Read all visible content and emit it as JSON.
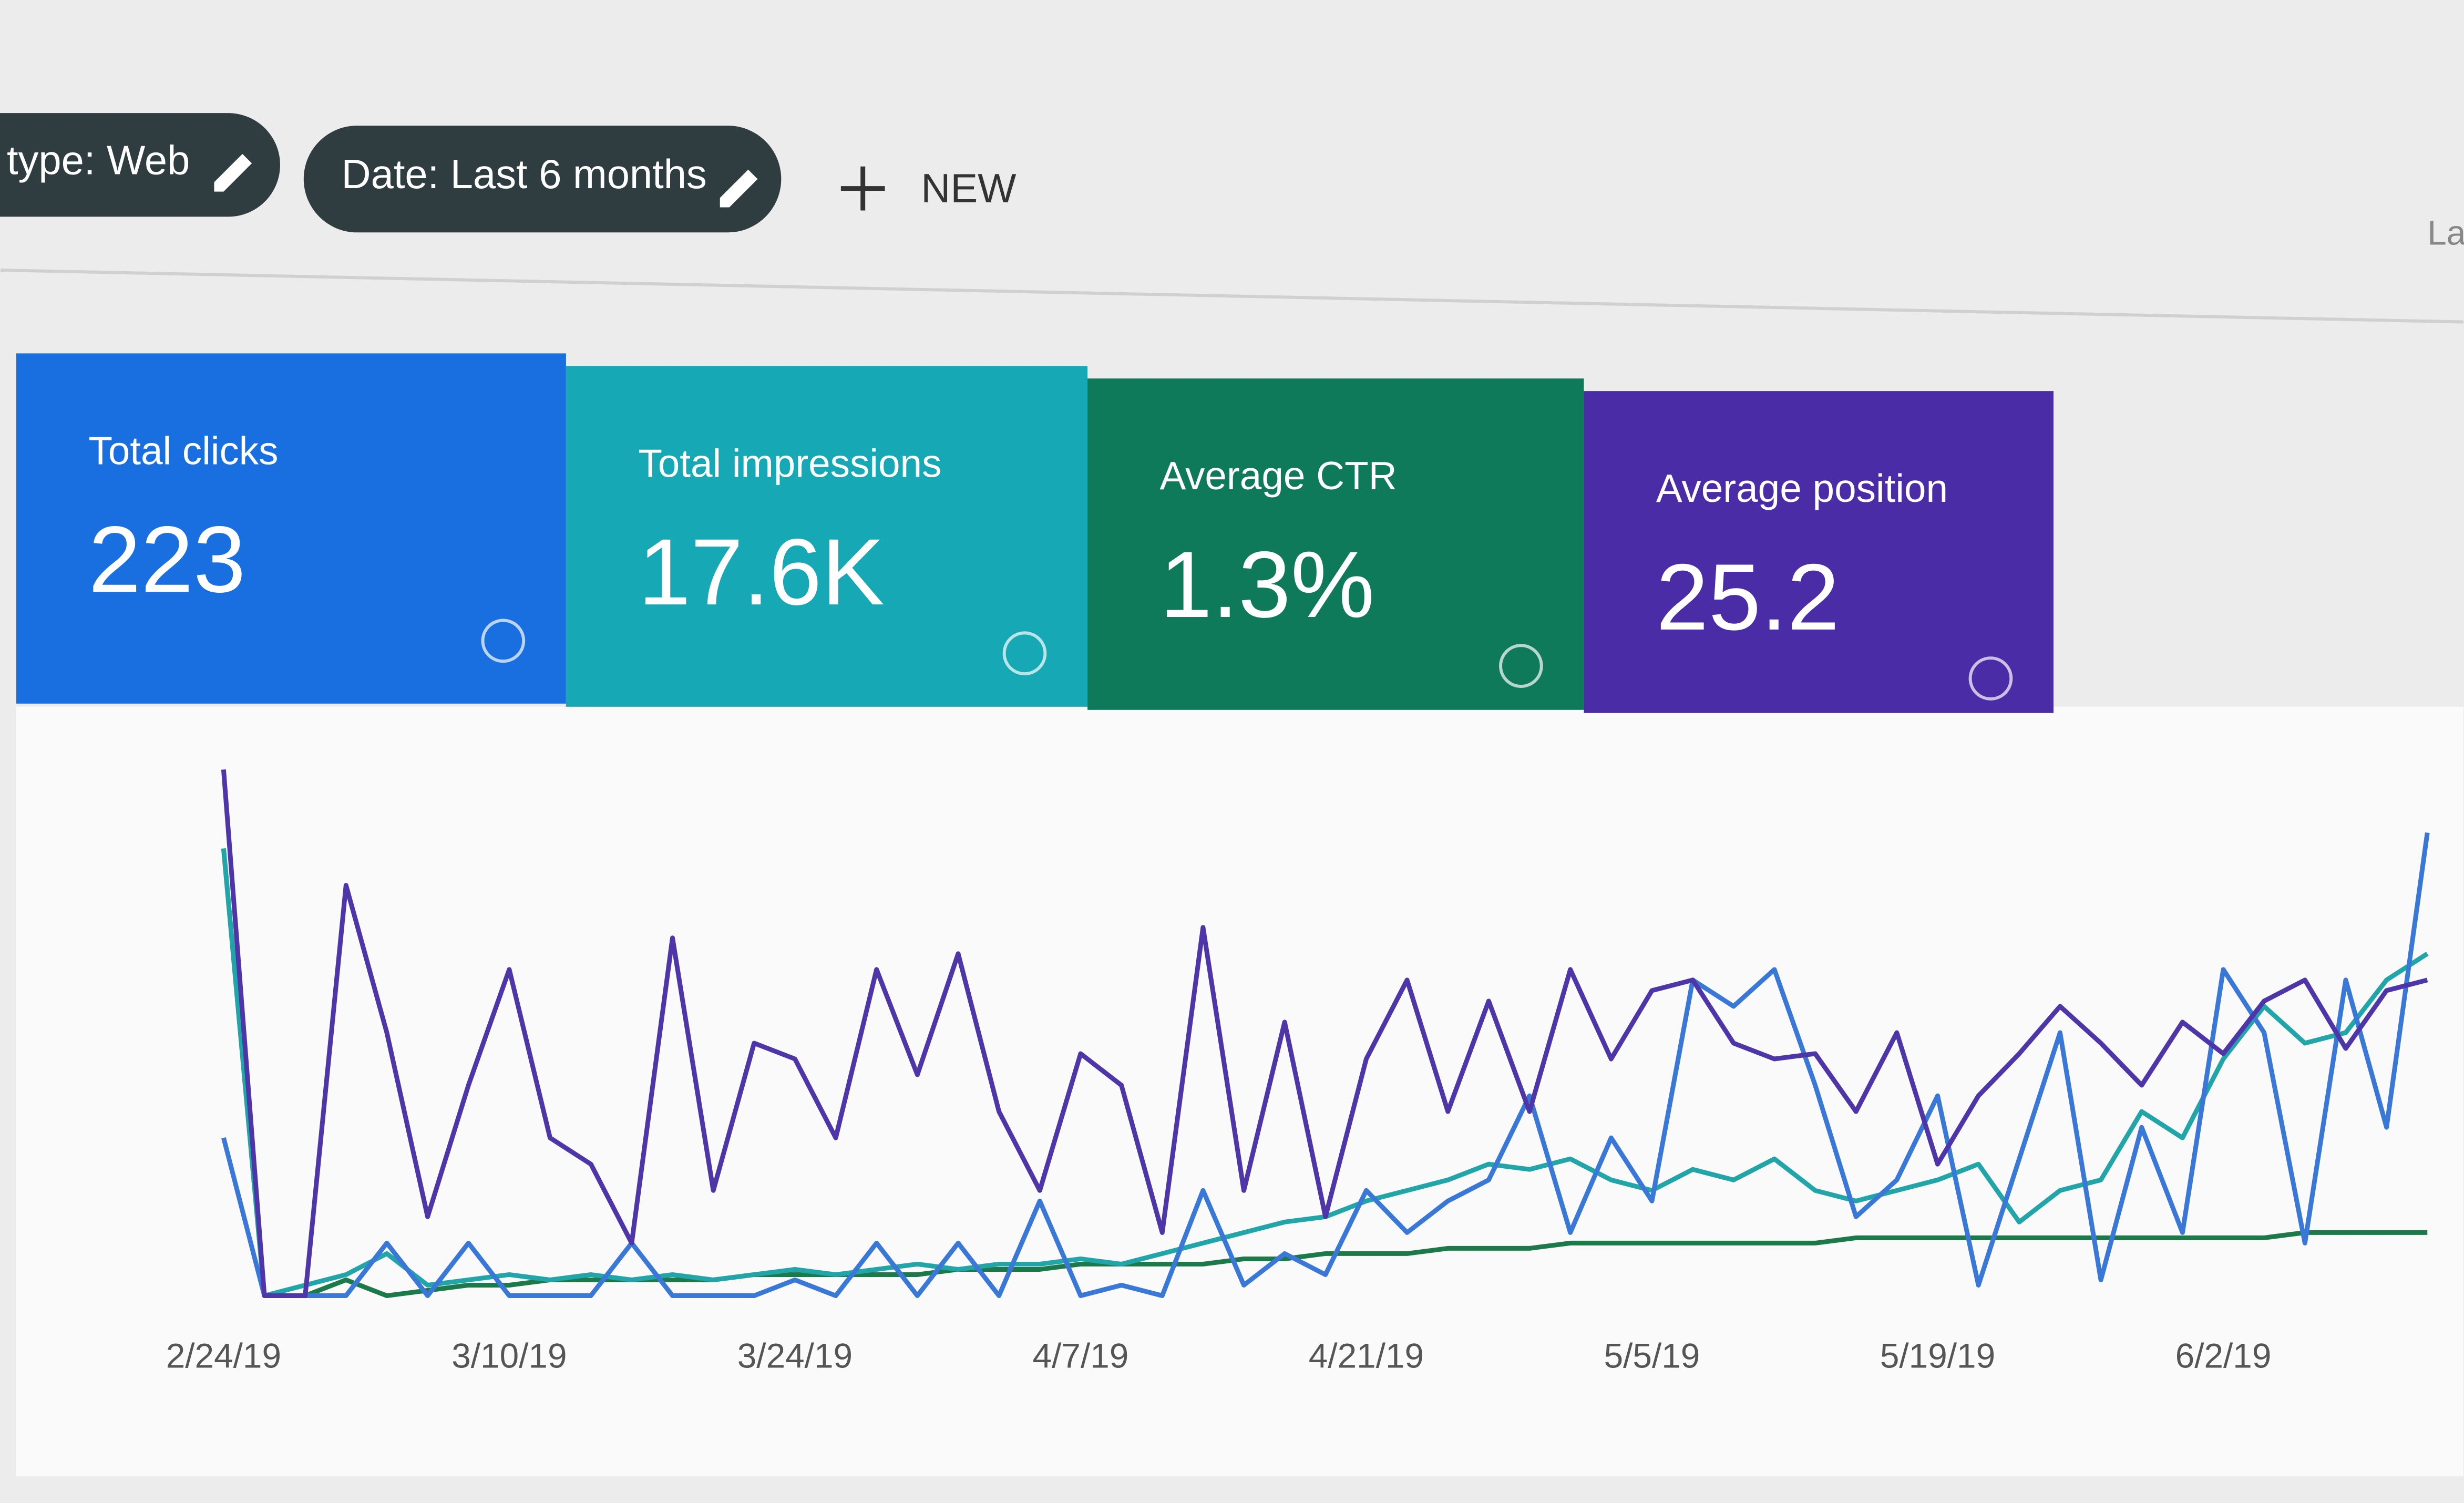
{
  "toolbar": {
    "filters": [
      "type: Web",
      "Date: Last 6 months"
    ],
    "new_button": "NEW",
    "corner_text": "La"
  },
  "cards": [
    {
      "title": "Total clicks",
      "value": "223",
      "color": "#1a6fe0"
    },
    {
      "title": "Total impressions",
      "value": "17.6K",
      "color": "#16a8b4"
    },
    {
      "title": "Average CTR",
      "value": "1.3%",
      "color": "#0f7a5a"
    },
    {
      "title": "Average position",
      "value": "25.2",
      "color": "#4a2ca6"
    }
  ],
  "chart_data": {
    "type": "line",
    "categories": [
      "2/24/19",
      null,
      null,
      null,
      null,
      null,
      null,
      "3/10/19",
      null,
      null,
      null,
      null,
      null,
      null,
      "3/24/19",
      null,
      null,
      null,
      null,
      null,
      null,
      "4/7/19",
      null,
      null,
      null,
      null,
      null,
      null,
      "4/21/19",
      null,
      null,
      null,
      null,
      null,
      null,
      "5/5/19",
      null,
      null,
      null,
      null,
      null,
      null,
      "5/19/19",
      null,
      null,
      null,
      null,
      null,
      null,
      "6/2/19",
      null,
      null,
      null,
      null,
      null
    ],
    "ylim": [
      0,
      100
    ],
    "series": [
      {
        "name": "Total impressions",
        "color": "#4e35a8",
        "values": [
          100,
          0,
          0,
          78,
          50,
          15,
          40,
          62,
          30,
          25,
          10,
          68,
          20,
          48,
          45,
          30,
          62,
          42,
          65,
          35,
          20,
          46,
          40,
          12,
          70,
          20,
          52,
          15,
          45,
          60,
          35,
          56,
          35,
          62,
          45,
          58,
          60,
          48,
          45,
          46,
          35,
          50,
          25,
          38,
          46,
          55,
          48,
          40,
          52,
          46,
          56,
          60,
          47,
          58,
          60
        ]
      },
      {
        "name": "Total clicks",
        "color": "#3a78d8",
        "values": [
          30,
          0,
          0,
          0,
          10,
          0,
          10,
          0,
          0,
          0,
          10,
          0,
          0,
          0,
          3,
          0,
          10,
          0,
          10,
          0,
          18,
          0,
          2,
          0,
          20,
          2,
          8,
          4,
          20,
          12,
          18,
          22,
          38,
          12,
          30,
          18,
          60,
          55,
          62,
          40,
          15,
          22,
          38,
          2,
          26,
          50,
          3,
          32,
          12,
          62,
          50,
          10,
          60,
          32,
          88
        ]
      },
      {
        "name": "Average CTR",
        "color": "#22a5a8",
        "values": [
          85,
          0,
          2,
          4,
          8,
          2,
          3,
          4,
          3,
          4,
          3,
          4,
          3,
          4,
          5,
          4,
          5,
          6,
          5,
          6,
          6,
          7,
          6,
          8,
          10,
          12,
          14,
          15,
          18,
          20,
          22,
          25,
          24,
          26,
          22,
          20,
          24,
          22,
          26,
          20,
          18,
          20,
          22,
          25,
          14,
          20,
          22,
          35,
          30,
          45,
          55,
          48,
          50,
          60,
          65
        ]
      },
      {
        "name": "Average position",
        "color": "#1c7a4a",
        "values": [
          85,
          0,
          0,
          3,
          0,
          1,
          2,
          2,
          3,
          3,
          3,
          3,
          3,
          4,
          4,
          4,
          4,
          4,
          5,
          5,
          5,
          6,
          6,
          6,
          6,
          7,
          7,
          8,
          8,
          8,
          9,
          9,
          9,
          10,
          10,
          10,
          10,
          10,
          10,
          10,
          11,
          11,
          11,
          11,
          11,
          11,
          11,
          11,
          11,
          11,
          11,
          12,
          12,
          12,
          12
        ]
      }
    ]
  }
}
